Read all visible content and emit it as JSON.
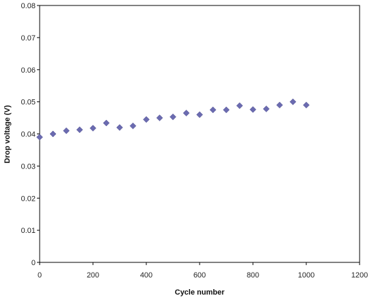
{
  "chart_data": {
    "type": "scatter",
    "title": "",
    "xlabel": "Cycle number",
    "ylabel": "Drop voltage (V)",
    "xlim": [
      0,
      1200
    ],
    "ylim": [
      0,
      0.08
    ],
    "x_ticks": [
      0,
      200,
      400,
      600,
      800,
      1000,
      1200
    ],
    "y_ticks": [
      0,
      0.01,
      0.02,
      0.03,
      0.04,
      0.05,
      0.06,
      0.07,
      0.08
    ],
    "x_tick_labels": [
      "0",
      "200",
      "400",
      "600",
      "800",
      "1000",
      "1200"
    ],
    "y_tick_labels": [
      "0",
      "0.01",
      "0.02",
      "0.03",
      "0.04",
      "0.05",
      "0.06",
      "0.07",
      "0.08"
    ],
    "grid": false,
    "legend": "none",
    "marker": "diamond",
    "marker_color": "#6b6bb0",
    "series": [
      {
        "x": [
          0,
          50,
          100,
          150,
          200,
          250,
          300,
          350,
          400,
          450,
          500,
          550,
          600,
          650,
          700,
          750,
          800,
          850,
          900,
          950,
          1000
        ],
        "y": [
          0.039,
          0.04,
          0.041,
          0.0413,
          0.0418,
          0.0434,
          0.042,
          0.0425,
          0.0445,
          0.045,
          0.0453,
          0.0465,
          0.046,
          0.0475,
          0.0475,
          0.0488,
          0.0476,
          0.0478,
          0.049,
          0.05,
          0.049
        ]
      }
    ]
  }
}
